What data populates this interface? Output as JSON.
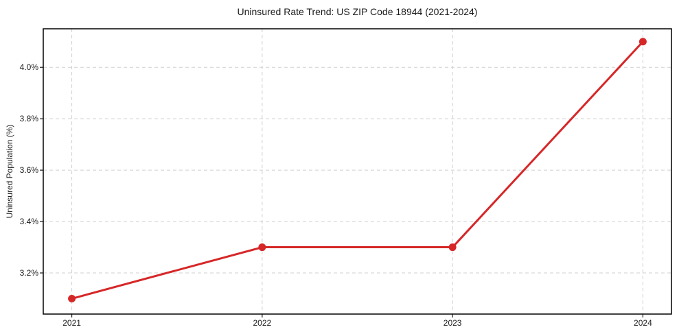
{
  "chart_data": {
    "type": "line",
    "title": "Uninsured Rate Trend: US ZIP Code 18944 (2021-2024)",
    "xlabel": "",
    "ylabel": "Uninsured Population (%)",
    "x": [
      2021,
      2022,
      2023,
      2024
    ],
    "x_tick_labels": [
      "2021",
      "2022",
      "2023",
      "2024"
    ],
    "series": [
      {
        "name": "Uninsured rate",
        "values": [
          3.1,
          3.3,
          3.3,
          4.1
        ],
        "color": "#d62728",
        "marker": "circle"
      }
    ],
    "y_ticks": [
      3.2,
      3.4,
      3.6,
      3.8,
      4.0
    ],
    "y_tick_labels": [
      "3.2%",
      "3.4%",
      "3.6%",
      "3.8%",
      "4.0%"
    ],
    "ylim": [
      3.04,
      4.15
    ],
    "xlim": [
      2020.85,
      2024.15
    ],
    "grid": "dashed",
    "grid_color": "#cfcfcf",
    "background_color": "#ffffff",
    "legend": "none"
  }
}
